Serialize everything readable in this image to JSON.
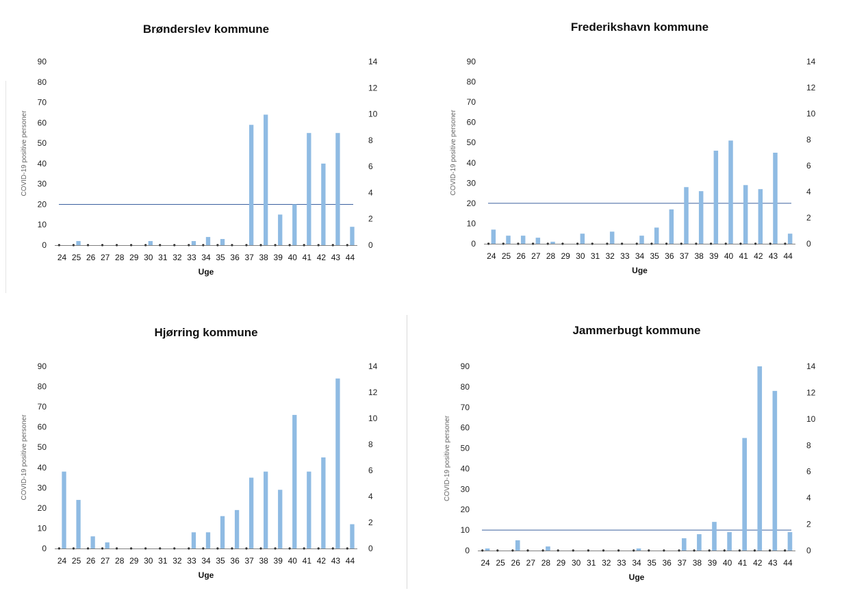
{
  "figure": {
    "x_label": "Uge",
    "bar_color": "#8fbbe3",
    "reference_line_color": "#3a5f9e",
    "dot_color": "#222222"
  },
  "chart_data": [
    {
      "type": "bar",
      "title": "Brønderslev kommune",
      "xlabel": "Uge",
      "ylabel": "COVID-19 positive personer",
      "categories": [
        "24",
        "25",
        "26",
        "27",
        "28",
        "29",
        "30",
        "31",
        "32",
        "33",
        "34",
        "35",
        "36",
        "37",
        "38",
        "39",
        "40",
        "41",
        "42",
        "43",
        "44"
      ],
      "ylim": [
        0,
        90
      ],
      "yticks": [
        0,
        10,
        20,
        30,
        40,
        50,
        60,
        70,
        80,
        90
      ],
      "y2lim": [
        0,
        14
      ],
      "y2ticks": [
        0,
        2,
        4,
        6,
        8,
        10,
        12,
        14
      ],
      "reference_line": 20,
      "grid": false,
      "series": [
        {
          "values": [
            0,
            2,
            0,
            0,
            0,
            0,
            2,
            0,
            0,
            2,
            4,
            3,
            0,
            59,
            64,
            15,
            20,
            55,
            40,
            55,
            9
          ]
        }
      ]
    },
    {
      "type": "bar",
      "title": "Frederikshavn kommune",
      "xlabel": "Uge",
      "ylabel": "COVID-19 positive personer",
      "categories": [
        "24",
        "25",
        "26",
        "27",
        "28",
        "29",
        "30",
        "31",
        "32",
        "33",
        "34",
        "35",
        "36",
        "37",
        "38",
        "39",
        "40",
        "41",
        "42",
        "43",
        "44"
      ],
      "ylim": [
        0,
        90
      ],
      "yticks": [
        0,
        10,
        20,
        30,
        40,
        50,
        60,
        70,
        80,
        90
      ],
      "y2lim": [
        0,
        14
      ],
      "y2ticks": [
        0,
        2,
        4,
        6,
        8,
        10,
        12,
        14
      ],
      "reference_line": 20,
      "grid": false,
      "series": [
        {
          "values": [
            7,
            4,
            4,
            3,
            1,
            0,
            5,
            0,
            6,
            0,
            4,
            8,
            17,
            28,
            26,
            46,
            51,
            29,
            27,
            45,
            5
          ]
        }
      ]
    },
    {
      "type": "bar",
      "title": "Hjørring kommune",
      "xlabel": "Uge",
      "ylabel": "COVID-19 positive personer",
      "categories": [
        "24",
        "25",
        "26",
        "27",
        "28",
        "29",
        "30",
        "31",
        "32",
        "33",
        "34",
        "35",
        "36",
        "37",
        "38",
        "39",
        "40",
        "41",
        "42",
        "43",
        "44"
      ],
      "ylim": [
        0,
        90
      ],
      "yticks": [
        0,
        10,
        20,
        30,
        40,
        50,
        60,
        70,
        80,
        90
      ],
      "y2lim": [
        0,
        14
      ],
      "y2ticks": [
        0,
        2,
        4,
        6,
        8,
        10,
        12,
        14
      ],
      "reference_line": null,
      "grid": false,
      "series": [
        {
          "values": [
            38,
            24,
            6,
            3,
            0,
            0,
            0,
            0,
            0,
            8,
            8,
            16,
            19,
            35,
            38,
            29,
            66,
            38,
            45,
            84,
            12
          ]
        }
      ]
    },
    {
      "type": "bar",
      "title": "Jammerbugt kommune",
      "xlabel": "Uge",
      "ylabel": "COVID-19 positive personer",
      "categories": [
        "24",
        "25",
        "26",
        "27",
        "28",
        "29",
        "30",
        "31",
        "32",
        "33",
        "34",
        "35",
        "36",
        "37",
        "38",
        "39",
        "40",
        "41",
        "42",
        "43",
        "44"
      ],
      "ylim": [
        0,
        90
      ],
      "yticks": [
        0,
        10,
        20,
        30,
        40,
        50,
        60,
        70,
        80,
        90
      ],
      "y2lim": [
        0,
        14
      ],
      "y2ticks": [
        0,
        2,
        4,
        6,
        8,
        10,
        12,
        14
      ],
      "reference_line": 10,
      "grid": false,
      "series": [
        {
          "values": [
            1,
            0,
            5,
            0,
            2,
            0,
            0,
            0,
            0,
            0,
            1,
            0,
            0,
            6,
            8,
            14,
            9,
            55,
            90,
            78,
            9
          ]
        }
      ]
    }
  ]
}
